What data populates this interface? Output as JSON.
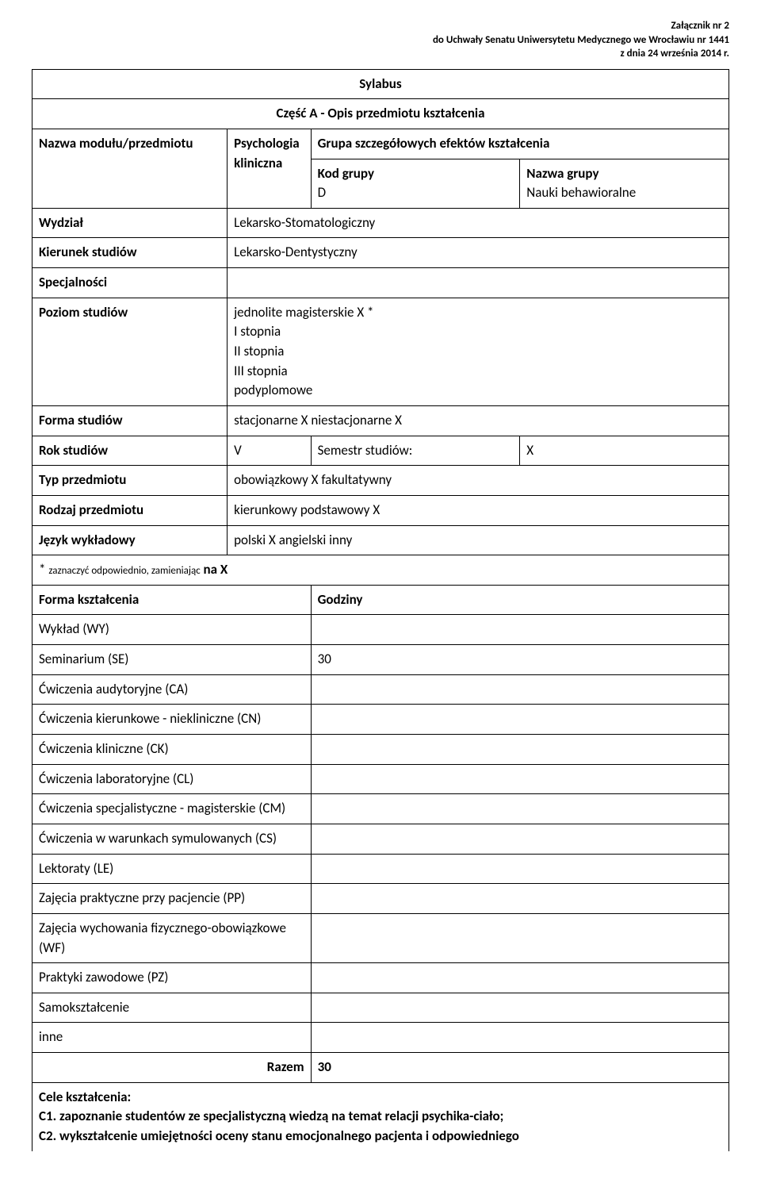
{
  "header": {
    "line1": "Załącznik nr 2",
    "line2": "do Uchwały Senatu Uniwersytetu Medycznego we Wrocławiu nr 1441",
    "line3": "z dnia 24 września 2014 r."
  },
  "title": "Sylabus",
  "partA": "Część A - Opis przedmiotu kształcenia",
  "labels": {
    "nazwa_modulu": "Nazwa modułu/przedmiotu",
    "grupa_efektow": "Grupa szczegółowych efektów kształcenia",
    "kod_grupy": "Kod grupy",
    "nazwa_grupy": "Nazwa grupy",
    "wydzial": "Wydział",
    "kierunek": "Kierunek studiów",
    "specjalnosci": "Specjalności",
    "poziom": "Poziom studiów",
    "forma_studiow": "Forma studiów",
    "rok": "Rok studiów",
    "semestr": "Semestr studiów:",
    "typ": "Typ przedmiotu",
    "rodzaj": "Rodzaj przedmiotu",
    "jezyk": "Język wykładowy",
    "forma_ksz": "Forma kształcenia",
    "godziny": "Godziny",
    "razem": "Razem",
    "cele": "Cele kształcenia:"
  },
  "values": {
    "przedmiot": "Psychologia kliniczna",
    "kod_grupy_val": "D",
    "nazwa_grupy_val": "Nauki behawioralne",
    "wydzial_val": "Lekarsko-Stomatologiczny",
    "kierunek_val": "Lekarsko-Dentystyczny",
    "poziom_lines": [
      "jednolite magisterskie X *",
      "I stopnia ",
      "II stopnia ",
      "III stopnia ",
      "podyplomowe "
    ],
    "forma_studiow_val": "stacjonarne  X   niestacjonarne  X",
    "rok_val": "V",
    "semestr_val": "X",
    "typ_val": "obowiązkowy  X   fakultatywny ",
    "rodzaj_val": "kierunkowy        podstawowy  X",
    "jezyk_val": "polski X   angielski        inny",
    "note_prefix": "* ",
    "note_small": "zaznaczyć odpowiednio, zamieniając",
    "note_suffix": "       na X",
    "razem_val": "30"
  },
  "forms": [
    {
      "name": "Wykład (WY)",
      "hours": ""
    },
    {
      "name": "Seminarium (SE)",
      "hours": "30"
    },
    {
      "name": "Ćwiczenia audytoryjne (CA)",
      "hours": ""
    },
    {
      "name": "Ćwiczenia kierunkowe - niekliniczne (CN)",
      "hours": ""
    },
    {
      "name": "Ćwiczenia kliniczne (CK)",
      "hours": ""
    },
    {
      "name": "Ćwiczenia laboratoryjne (CL)",
      "hours": ""
    },
    {
      "name": "Ćwiczenia specjalistyczne - magisterskie (CM)",
      "hours": ""
    },
    {
      "name": "Ćwiczenia w warunkach symulowanych (CS)",
      "hours": ""
    },
    {
      "name": "Lektoraty (LE)",
      "hours": ""
    },
    {
      "name": "Zajęcia praktyczne przy pacjencie (PP)",
      "hours": ""
    },
    {
      "name": "Zajęcia wychowania fizycznego-obowiązkowe (WF)",
      "hours": ""
    },
    {
      "name": "Praktyki zawodowe (PZ)",
      "hours": ""
    },
    {
      "name": "Samokształcenie",
      "hours": ""
    },
    {
      "name": "inne",
      "hours": ""
    }
  ],
  "cele_lines": [
    "C1. zapoznanie studentów ze specjalistyczną wiedzą na temat relacji psychika-ciało;",
    "C2. wykształcenie umiejętności oceny stanu emocjonalnego pacjenta i odpowiedniego"
  ]
}
